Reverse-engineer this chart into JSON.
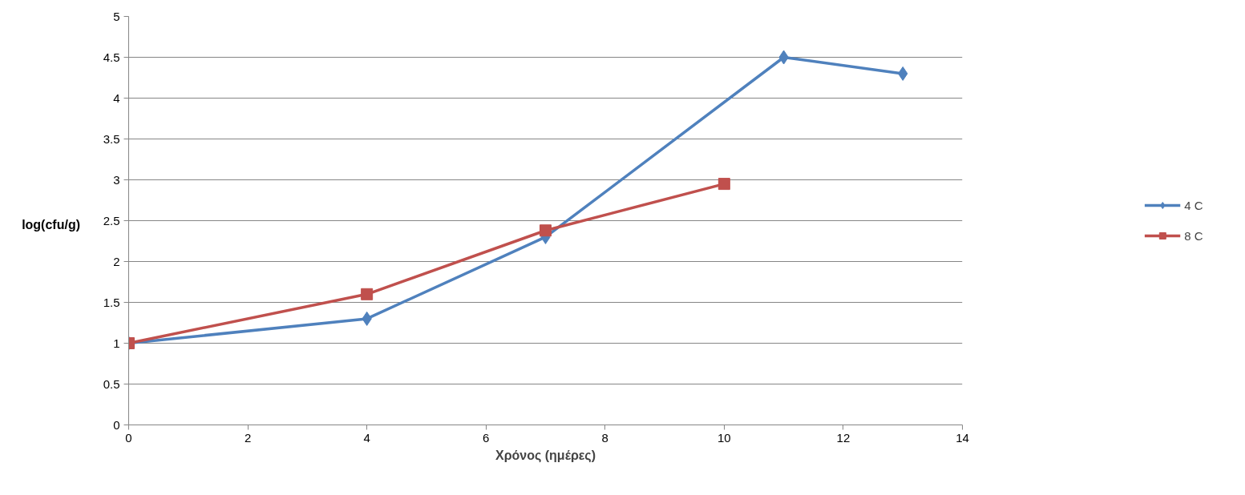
{
  "chart_data": {
    "type": "line",
    "xlabel": "Χρόνος (ημέρες)",
    "ylabel": "log(cfu/g)",
    "xlim": [
      0,
      14
    ],
    "xticks": [
      0,
      2,
      4,
      6,
      8,
      10,
      12,
      14
    ],
    "ylim": [
      0,
      5
    ],
    "yticks": [
      0,
      0.5,
      1,
      1.5,
      2,
      2.5,
      3,
      3.5,
      4,
      4.5,
      5
    ],
    "grid": "y",
    "legend": "right",
    "line_style": "solid",
    "series": [
      {
        "name": "4 C",
        "color": "#4f81bd",
        "marker": "diamond",
        "x": [
          0,
          4,
          7,
          11,
          13
        ],
        "values": [
          1,
          1.3,
          2.3,
          4.5,
          4.3
        ]
      },
      {
        "name": "8 C",
        "color": "#c0504d",
        "marker": "square",
        "x": [
          0,
          4,
          7,
          10
        ],
        "values": [
          1,
          1.6,
          2.38,
          2.95
        ]
      }
    ]
  }
}
